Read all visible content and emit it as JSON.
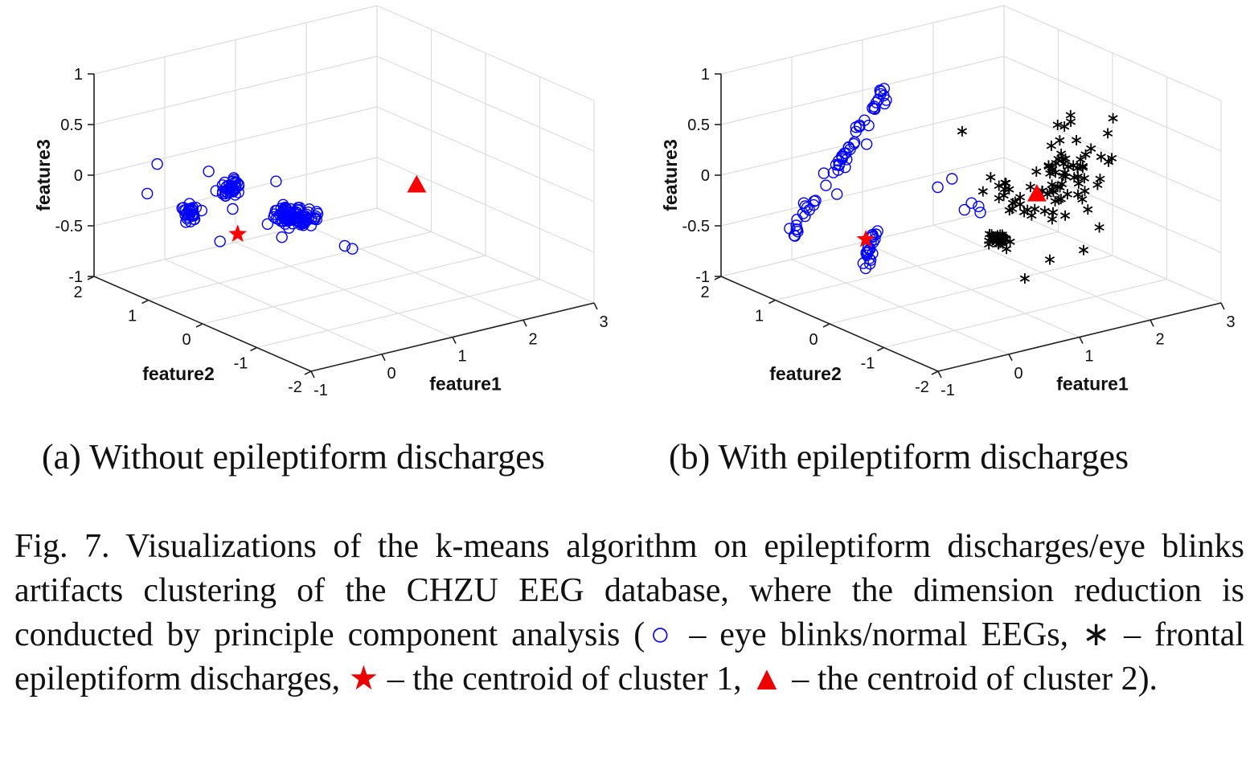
{
  "chart_data": [
    {
      "type": "scatter",
      "projection": "3d",
      "panel_label": "(a)",
      "subtitle": "Without epileptiform discharges",
      "xlabel": "feature1",
      "ylabel": "feature2",
      "zlabel": "feature3",
      "x_ticks": [
        "-1",
        "0",
        "1",
        "2",
        "3"
      ],
      "y_ticks": [
        "-2",
        "-1",
        "0",
        "1",
        "2"
      ],
      "z_ticks": [
        "-1",
        "-0.5",
        "0",
        "0.5",
        "1"
      ],
      "xlim": [
        -1,
        3
      ],
      "ylim": [
        -2,
        2
      ],
      "zlim": [
        -1,
        1
      ],
      "grid": true,
      "series": [
        {
          "marker": "circle",
          "color": "#0000ff",
          "clusters": [
            {
              "center": [
                -0.72,
                0.6,
                -0.1
              ],
              "spread": [
                0.05,
                0.05,
                0.05
              ],
              "n": 30
            },
            {
              "center": [
                -0.28,
                0.42,
                0.12
              ],
              "spread": [
                0.06,
                0.06,
                0.05
              ],
              "n": 40
            },
            {
              "center": [
                0.25,
                0.05,
                -0.15
              ],
              "spread": [
                0.1,
                0.06,
                0.04
              ],
              "n": 80
            },
            {
              "center": [
                0.45,
                -0.05,
                -0.2
              ],
              "spread": [
                0.08,
                0.05,
                0.03
              ],
              "n": 30
            }
          ],
          "points": [
            [
              -0.72,
              1.2,
              0.25
            ],
            [
              -0.9,
              1.15,
              0.0
            ],
            [
              -0.6,
              0.2,
              -0.3
            ],
            [
              -0.3,
              0.8,
              0.2
            ],
            [
              0.0,
              -0.05,
              0.25
            ],
            [
              0.55,
              -0.6,
              -0.35
            ],
            [
              0.62,
              -0.65,
              -0.38
            ]
          ]
        }
      ],
      "centroids": [
        {
          "marker": "star",
          "color": "#ff0000",
          "point": [
            -0.35,
            0.2,
            -0.27
          ]
        },
        {
          "marker": "triangle",
          "color": "#ff0000",
          "point": [
            1.95,
            -0.1,
            -0.1
          ]
        }
      ]
    },
    {
      "type": "scatter",
      "projection": "3d",
      "panel_label": "(b)",
      "subtitle": "With epileptiform discharges",
      "xlabel": "feature1",
      "ylabel": "feature2",
      "zlabel": "feature3",
      "x_ticks": [
        "-1",
        "0",
        "1",
        "2",
        "3"
      ],
      "y_ticks": [
        "-2",
        "-1",
        "0",
        "1",
        "2"
      ],
      "z_ticks": [
        "-1",
        "-0.5",
        "0",
        "0.5",
        "1"
      ],
      "xlim": [
        -1,
        3
      ],
      "ylim": [
        -2,
        2
      ],
      "zlim": [
        -1,
        1
      ],
      "grid": true,
      "series": [
        {
          "marker": "circle",
          "color": "#0000ff",
          "lines": [
            {
              "from": [
                -0.9,
                0.9,
                -0.4
              ],
              "to": [
                0.05,
                0.35,
                1.05
              ],
              "n": 55,
              "jitter": 0.03
            },
            {
              "from": [
                -0.45,
                0.05,
                -0.55
              ],
              "to": [
                -0.3,
                0.05,
                -0.2
              ],
              "n": 22,
              "jitter": 0.03
            }
          ],
          "points": [
            [
              0.3,
              -0.3,
              0.2
            ],
            [
              0.5,
              -0.3,
              0.25
            ],
            [
              0.6,
              -0.4,
              -0.05
            ],
            [
              0.7,
              -0.4,
              0.0
            ],
            [
              0.8,
              -0.4,
              -0.05
            ],
            [
              0.9,
              -0.3,
              -0.15
            ],
            [
              -0.4,
              0.1,
              0.65
            ],
            [
              -0.55,
              0.3,
              0.4
            ],
            [
              -0.55,
              0.45,
              0.1
            ]
          ]
        },
        {
          "marker": "asterisk",
          "color": "#000000",
          "clusters": [
            {
              "center": [
                1.05,
                -0.45,
                -0.4
              ],
              "spread": [
                0.07,
                0.05,
                0.04
              ],
              "n": 30
            },
            {
              "center": [
                1.95,
                -0.55,
                0.15
              ],
              "spread": [
                0.2,
                0.2,
                0.22
              ],
              "n": 60
            },
            {
              "center": [
                1.4,
                -0.3,
                -0.1
              ],
              "spread": [
                0.15,
                0.15,
                0.1
              ],
              "n": 20
            }
          ],
          "points": [
            [
              1.3,
              -0.6,
              -0.8
            ],
            [
              1.5,
              -0.8,
              -0.6
            ],
            [
              1.9,
              -0.9,
              -0.55
            ],
            [
              2.2,
              -0.8,
              -0.4
            ],
            [
              2.7,
              -0.4,
              0.5
            ],
            [
              2.55,
              -0.5,
              0.4
            ],
            [
              0.95,
              0.1,
              0.55
            ],
            [
              1.2,
              -0.1,
              0.1
            ]
          ]
        }
      ],
      "centroids": [
        {
          "marker": "star",
          "color": "#ff0000",
          "point": [
            -0.45,
            0.05,
            -0.27
          ]
        },
        {
          "marker": "triangle",
          "color": "#ff0000",
          "point": [
            1.7,
            -0.3,
            -0.1
          ]
        }
      ]
    }
  ],
  "captions": {
    "a": "(a)  Without epileptiform discharges",
    "b": "(b)  With epileptiform discharges"
  },
  "figure_caption": {
    "part1": "Fig. 7.  Visualizations of the k-means algorithm on epileptiform discharges/eye blinks artifacts clustering of the CHZU EEG database, where the dimension reduction is conducted by principle component analysis (",
    "sym_circle": "○",
    "part2": " – eye blinks/normal EEGs, ",
    "sym_ast": "∗",
    "part3": " – frontal epileptiform discharges, ",
    "sym_star": "★",
    "part4": " – the centroid of cluster 1, ",
    "sym_tri": "▲",
    "part5": " – the centroid of cluster 2)."
  }
}
